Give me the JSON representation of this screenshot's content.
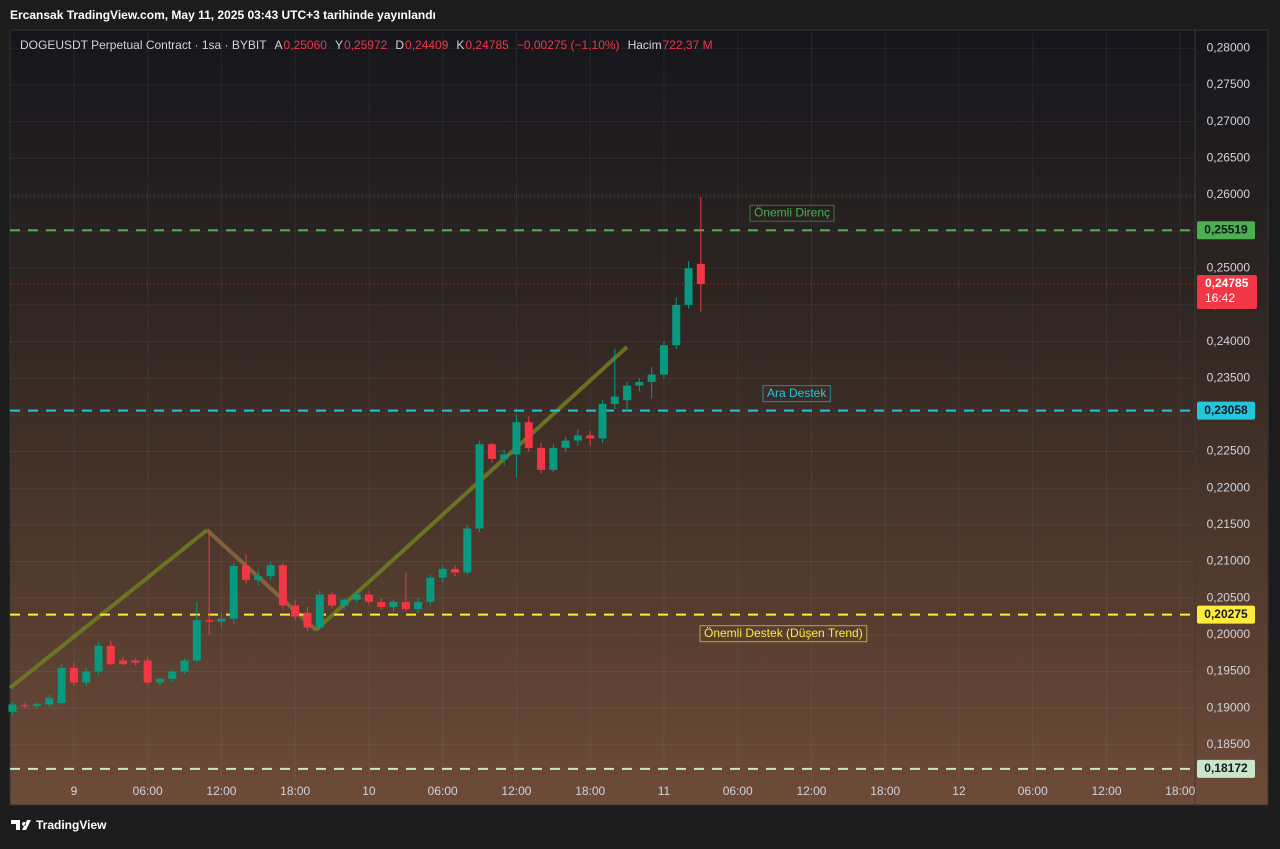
{
  "header": "Ercansak TradingView.com, May 11, 2025 03:43 UTC+3 tarihinde yayınlandı",
  "footer": "TradingView",
  "chart_data": {
    "type": "candlestick",
    "title": "DOGEUSDT Perpetual Contract · 1sa · BYBIT",
    "legend": {
      "open_label": "A",
      "open": "0,25060",
      "high_label": "Y",
      "high": "0,25972",
      "low_label": "D",
      "low": "0,24409",
      "close_label": "K",
      "close": "0,24785",
      "change": "−0,00275 (−1,10%)",
      "volume_label": "Hacim",
      "volume": "722,37 M"
    },
    "up_color": "#089981",
    "down_color": "#f23645",
    "x": [
      -5,
      -4,
      -3,
      -2,
      -1,
      0,
      1,
      2,
      3,
      4,
      5,
      6,
      7,
      8,
      9,
      10,
      11,
      12,
      13,
      14,
      15,
      16,
      17,
      18,
      19,
      20,
      21,
      22,
      23,
      24,
      25,
      26,
      27,
      28,
      29,
      30,
      31,
      32,
      33,
      34,
      35,
      36,
      37,
      38,
      39,
      40,
      41,
      42,
      43,
      44,
      45,
      46,
      47,
      48,
      49,
      50,
      51
    ],
    "open": [
      0.1895,
      0.1904,
      0.1903,
      0.1905,
      0.1907,
      0.1955,
      0.1935,
      0.195,
      0.1985,
      0.1965,
      0.1965,
      0.1965,
      0.1935,
      0.194,
      0.195,
      0.1965,
      0.202,
      0.2018,
      0.2022,
      0.2094,
      0.2075,
      0.208,
      0.2095,
      0.204,
      0.203,
      0.201,
      0.2055,
      0.204,
      0.2048,
      0.2055,
      0.2045,
      0.2038,
      0.2045,
      0.2035,
      0.2045,
      0.2078,
      0.209,
      0.2085,
      0.2145,
      0.226,
      0.224,
      0.2246,
      0.229,
      0.2255,
      0.2225,
      0.2255,
      0.2265,
      0.2272,
      0.2268,
      0.2315,
      0.232,
      0.234,
      0.2345,
      0.2355,
      0.2395,
      0.245,
      0.2506
    ],
    "high": [
      0.1908,
      0.1907,
      0.1908,
      0.1918,
      0.196,
      0.1962,
      0.1955,
      0.199,
      0.1992,
      0.197,
      0.1968,
      0.197,
      0.1942,
      0.1952,
      0.1968,
      0.2045,
      0.2143,
      0.203,
      0.2098,
      0.211,
      0.2088,
      0.21,
      0.2098,
      0.2048,
      0.2038,
      0.206,
      0.2058,
      0.205,
      0.206,
      0.206,
      0.205,
      0.2048,
      0.2085,
      0.205,
      0.2082,
      0.2095,
      0.2095,
      0.215,
      0.2265,
      0.2262,
      0.2252,
      0.23,
      0.2298,
      0.2262,
      0.226,
      0.227,
      0.228,
      0.2278,
      0.232,
      0.239,
      0.2345,
      0.235,
      0.2365,
      0.24,
      0.246,
      0.251,
      0.25972
    ],
    "low": [
      0.189,
      0.19,
      0.19,
      0.1902,
      0.1905,
      0.193,
      0.193,
      0.1945,
      0.1958,
      0.1958,
      0.1958,
      0.1932,
      0.193,
      0.1936,
      0.1946,
      0.1962,
      0.2,
      0.201,
      0.2015,
      0.207,
      0.2068,
      0.2075,
      0.2035,
      0.202,
      0.2005,
      0.2007,
      0.2036,
      0.2035,
      0.2044,
      0.204,
      0.2035,
      0.2032,
      0.2032,
      0.203,
      0.204,
      0.2072,
      0.208,
      0.2082,
      0.214,
      0.2235,
      0.223,
      0.2215,
      0.225,
      0.222,
      0.2222,
      0.225,
      0.2258,
      0.2258,
      0.2262,
      0.2308,
      0.2305,
      0.2332,
      0.2322,
      0.235,
      0.239,
      0.2445,
      0.24409
    ],
    "close": [
      0.1905,
      0.1903,
      0.1906,
      0.1914,
      0.1955,
      0.1935,
      0.195,
      0.1985,
      0.196,
      0.196,
      0.1962,
      0.1935,
      0.194,
      0.195,
      0.1965,
      0.202,
      0.2018,
      0.2022,
      0.2094,
      0.2075,
      0.208,
      0.2095,
      0.204,
      0.2025,
      0.201,
      0.2055,
      0.204,
      0.2048,
      0.2055,
      0.2045,
      0.2038,
      0.2045,
      0.2035,
      0.2045,
      0.2078,
      0.209,
      0.2085,
      0.2145,
      0.226,
      0.224,
      0.2246,
      0.229,
      0.2255,
      0.2225,
      0.2255,
      0.2265,
      0.2272,
      0.2268,
      0.2315,
      0.2325,
      0.234,
      0.2345,
      0.2355,
      0.2395,
      0.245,
      0.25,
      0.24785
    ],
    "xlim": [
      -5.2,
      91.2
    ],
    "xticks": [
      {
        "value": 0,
        "label": "9"
      },
      {
        "value": 6,
        "label": "06:00"
      },
      {
        "value": 12,
        "label": "12:00"
      },
      {
        "value": 18,
        "label": "18:00"
      },
      {
        "value": 24,
        "label": "10"
      },
      {
        "value": 30,
        "label": "06:00"
      },
      {
        "value": 36,
        "label": "12:00"
      },
      {
        "value": 42,
        "label": "18:00"
      },
      {
        "value": 48,
        "label": "11"
      },
      {
        "value": 54,
        "label": "06:00"
      },
      {
        "value": 60,
        "label": "12:00"
      },
      {
        "value": 66,
        "label": "18:00"
      },
      {
        "value": 72,
        "label": "12"
      },
      {
        "value": 78,
        "label": "06:00"
      },
      {
        "value": 84,
        "label": "12:00"
      },
      {
        "value": 90,
        "label": "18:00"
      }
    ],
    "ylim": [
      0.1802,
      0.2825
    ],
    "yticks": [
      {
        "value": 0.185,
        "label": "0,18500"
      },
      {
        "value": 0.19,
        "label": "0,19000"
      },
      {
        "value": 0.195,
        "label": "0,19500"
      },
      {
        "value": 0.2,
        "label": "0,20000"
      },
      {
        "value": 0.205,
        "label": "0,20500"
      },
      {
        "value": 0.21,
        "label": "0,21000"
      },
      {
        "value": 0.215,
        "label": "0,21500"
      },
      {
        "value": 0.22,
        "label": "0,22000"
      },
      {
        "value": 0.225,
        "label": "0,22500"
      },
      {
        "value": 0.23,
        "label": "0,23000"
      },
      {
        "value": 0.235,
        "label": "0,23500"
      },
      {
        "value": 0.24,
        "label": "0,24000"
      },
      {
        "value": 0.245,
        "label": "0,24500"
      },
      {
        "value": 0.25,
        "label": "0,25000"
      },
      {
        "value": 0.255,
        "label": "0,25500"
      },
      {
        "value": 0.26,
        "label": "0,26000"
      },
      {
        "value": 0.265,
        "label": "0,26500"
      },
      {
        "value": 0.27,
        "label": "0,27000"
      },
      {
        "value": 0.275,
        "label": "0,27500"
      },
      {
        "value": 0.28,
        "label": "0,28000"
      }
    ],
    "grid": true,
    "levels": [
      {
        "value": 0.25519,
        "label": "0,25519",
        "color": "#4caf50",
        "name": "Önemli Direnç"
      },
      {
        "value": 0.23058,
        "label": "0,23058",
        "color": "#26c6da",
        "name": "Ara Destek"
      },
      {
        "value": 0.20275,
        "label": "0,20275",
        "color": "#ffeb3b",
        "name": "Önemli Destek (Düşen Trend)"
      },
      {
        "value": 0.18172,
        "label": "0,18172",
        "color": "#c8e6c9"
      }
    ],
    "last_price": {
      "value": 0.24785,
      "label": "0,24785",
      "countdown": "16:42"
    }
  }
}
